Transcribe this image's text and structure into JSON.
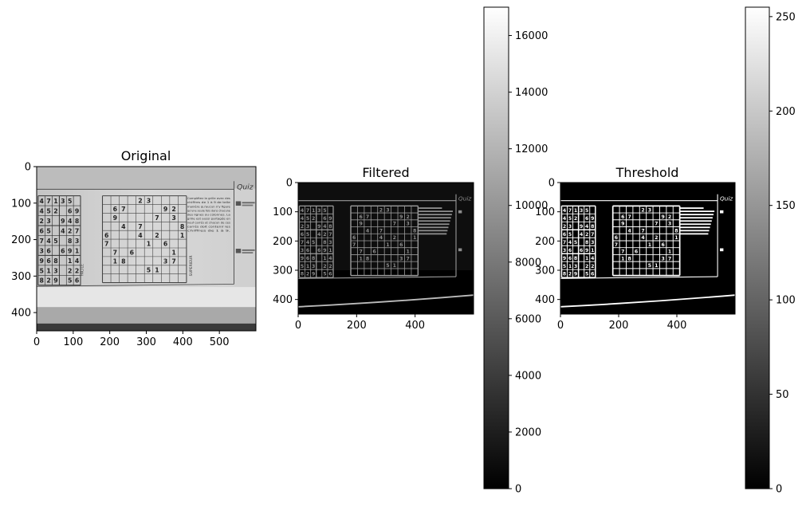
{
  "figure": {
    "background": "#ffffff"
  },
  "chart_data": [
    {
      "type": "heatmap",
      "title": "Original",
      "cmap": "gray",
      "image_width": 600,
      "image_height": 450,
      "xlim": [
        0,
        600
      ],
      "ylim": [
        450,
        0
      ],
      "xticks": [
        0,
        100,
        200,
        300,
        400,
        500
      ],
      "yticks": [
        0,
        100,
        200,
        300,
        400
      ],
      "content": {
        "sudoku_left_digits": [
          [
            "4",
            "7",
            "1",
            "3",
            "5",
            ""
          ],
          [
            "4",
            "5",
            "2",
            "",
            "6",
            "9"
          ],
          [
            "2",
            "3",
            "",
            "9",
            "4",
            "8"
          ],
          [
            "6",
            "5",
            "",
            "4",
            "2",
            "7"
          ],
          [
            "7",
            "4",
            "5",
            "",
            "8",
            "3"
          ],
          [
            "3",
            "6",
            "",
            "6",
            "9",
            "1"
          ],
          [
            "9",
            "6",
            "8",
            "",
            "1",
            "4"
          ],
          [
            "5",
            "1",
            "3",
            "",
            "2",
            "2"
          ],
          [
            "8",
            "2",
            "9",
            "",
            "5",
            "6"
          ]
        ],
        "sudoku_main_givens": [
          {
            "r": 0,
            "c": 4,
            "v": "2"
          },
          {
            "r": 0,
            "c": 5,
            "v": "3"
          },
          {
            "r": 1,
            "c": 1,
            "v": "6"
          },
          {
            "r": 1,
            "c": 2,
            "v": "7"
          },
          {
            "r": 1,
            "c": 7,
            "v": "9"
          },
          {
            "r": 1,
            "c": 8,
            "v": "2"
          },
          {
            "r": 2,
            "c": 1,
            "v": "9"
          },
          {
            "r": 2,
            "c": 6,
            "v": "7"
          },
          {
            "r": 2,
            "c": 8,
            "v": "3"
          },
          {
            "r": 3,
            "c": 2,
            "v": "4"
          },
          {
            "r": 3,
            "c": 4,
            "v": "7"
          },
          {
            "r": 3,
            "c": 9,
            "v": "8"
          },
          {
            "r": 4,
            "c": 0,
            "v": "6"
          },
          {
            "r": 4,
            "c": 4,
            "v": "4"
          },
          {
            "r": 4,
            "c": 6,
            "v": "2"
          },
          {
            "r": 4,
            "c": 9,
            "v": "1"
          },
          {
            "r": 5,
            "c": 0,
            "v": "7"
          },
          {
            "r": 5,
            "c": 5,
            "v": "1"
          },
          {
            "r": 5,
            "c": 7,
            "v": "6"
          },
          {
            "r": 6,
            "c": 1,
            "v": "7"
          },
          {
            "r": 6,
            "c": 3,
            "v": "6"
          },
          {
            "r": 6,
            "c": 8,
            "v": "1"
          },
          {
            "r": 7,
            "c": 1,
            "v": "1"
          },
          {
            "r": 7,
            "c": 2,
            "v": "8"
          },
          {
            "r": 7,
            "c": 7,
            "v": "3"
          },
          {
            "r": 7,
            "c": 8,
            "v": "7"
          },
          {
            "r": 8,
            "c": 5,
            "v": "5"
          },
          {
            "r": 8,
            "c": 6,
            "v": "1"
          }
        ],
        "quiz_heading": "Quiz",
        "instruction_text": [
          "Complétez la grille avec des",
          "chiffres de 1 à 9 de telle",
          "manière qu'aucun n'y figure",
          "qu'une seule fois dans chacune",
          "des lignes ou colonnes. La",
          "grille est aussi partagée en",
          "neuf carrés et chacun de ces",
          "carrés doit contenir les",
          "chiffres de 1 à 9."
        ],
        "label_facile": "FACILE",
        "label_superieur": "SUPERIEUR"
      }
    },
    {
      "type": "heatmap",
      "title": "Filtered",
      "cmap": "gray",
      "image_width": 600,
      "image_height": 450,
      "xlim": [
        0,
        600
      ],
      "ylim": [
        450,
        0
      ],
      "xticks": [
        0,
        200,
        400
      ],
      "yticks": [
        0,
        100,
        200,
        300,
        400
      ],
      "colorbar": {
        "vmin": 0,
        "vmax": 17000,
        "ticks": [
          0,
          2000,
          4000,
          6000,
          8000,
          10000,
          12000,
          14000,
          16000
        ]
      }
    },
    {
      "type": "heatmap",
      "title": "Threshold",
      "cmap": "gray",
      "image_width": 600,
      "image_height": 450,
      "xlim": [
        0,
        600
      ],
      "ylim": [
        450,
        0
      ],
      "xticks": [
        0,
        200,
        400
      ],
      "yticks": [
        0,
        100,
        200,
        300,
        400
      ],
      "colorbar": {
        "vmin": 0,
        "vmax": 255,
        "ticks": [
          0,
          50,
          100,
          150,
          200,
          250
        ]
      }
    }
  ]
}
